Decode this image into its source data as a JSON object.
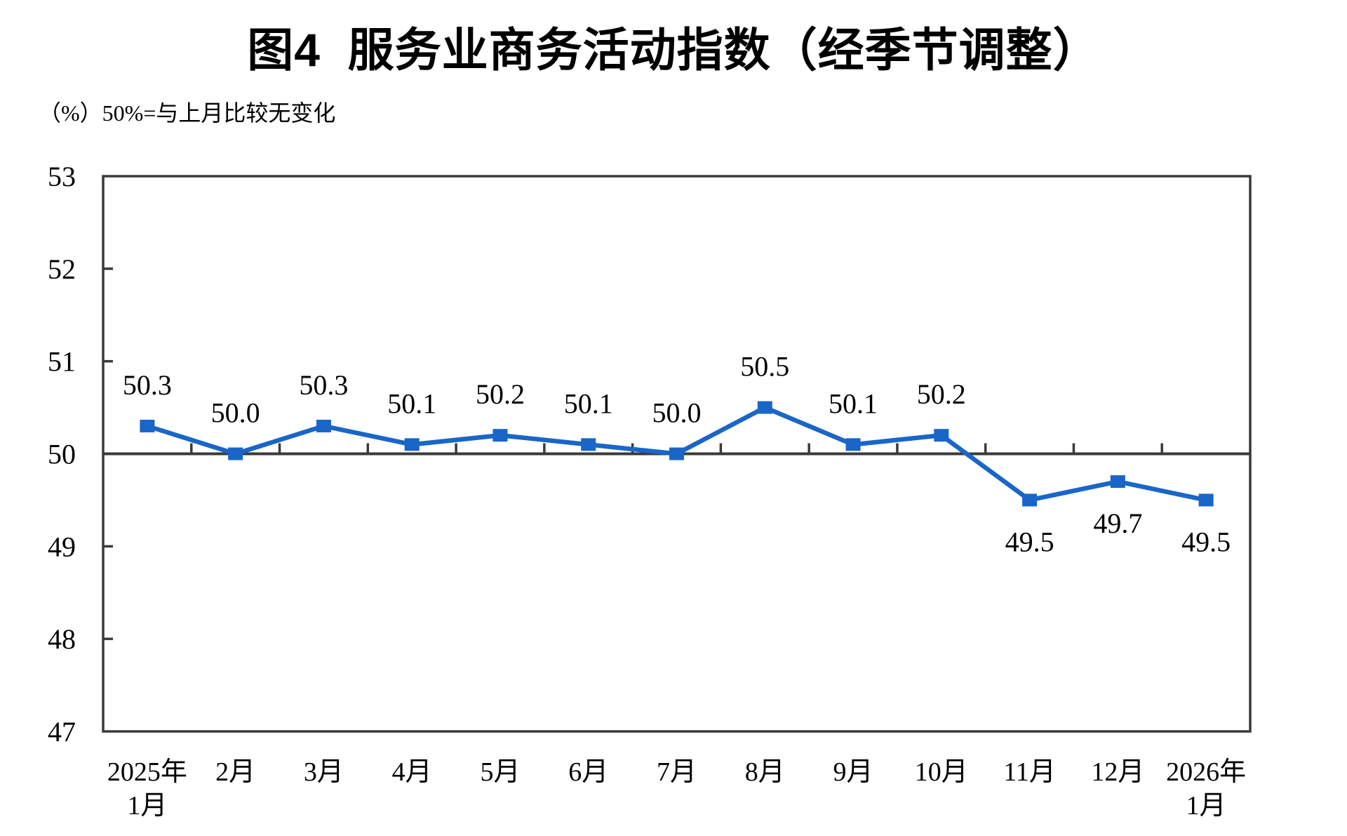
{
  "chart_data": {
    "type": "line",
    "title": "图4  服务业商务活动指数（经季节调整）",
    "unit_note": "（%）50%=与上月比较无变化",
    "categories": [
      [
        "2025年",
        "1月"
      ],
      [
        "2月"
      ],
      [
        "3月"
      ],
      [
        "4月"
      ],
      [
        "5月"
      ],
      [
        "6月"
      ],
      [
        "7月"
      ],
      [
        "8月"
      ],
      [
        "9月"
      ],
      [
        "10月"
      ],
      [
        "11月"
      ],
      [
        "12月"
      ],
      [
        "2026年",
        "1月"
      ]
    ],
    "values": [
      50.3,
      50.0,
      50.3,
      50.1,
      50.2,
      50.1,
      50.0,
      50.5,
      50.1,
      50.2,
      49.5,
      49.7,
      49.5
    ],
    "data_labels": [
      "50.3",
      "50.0",
      "50.3",
      "50.1",
      "50.2",
      "50.1",
      "50.0",
      "50.5",
      "50.1",
      "50.2",
      "49.5",
      "49.7",
      "49.5"
    ],
    "ylim": [
      47,
      53
    ],
    "yticks": [
      47,
      48,
      49,
      50,
      51,
      52,
      53
    ],
    "baseline": 50,
    "grid": false,
    "legend": "none",
    "marker": "square",
    "line_color": "#1966C8",
    "axis_color": "#3A3A3A",
    "text_color": "#000000",
    "background_color": "#FFFFFF"
  }
}
